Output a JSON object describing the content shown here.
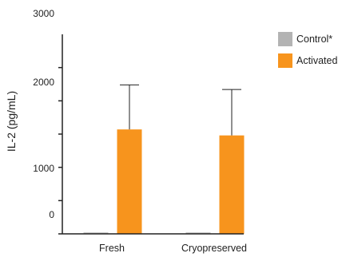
{
  "chart_data": {
    "type": "bar",
    "title": "",
    "xlabel": "",
    "ylabel": "IL-2 (pg/mL)",
    "ylim": [
      0,
      3000
    ],
    "yticks": [
      "0",
      "1000",
      "2000",
      "3000"
    ],
    "categories": [
      "Fresh",
      "Cryopreserved"
    ],
    "series": [
      {
        "name": "Control*",
        "color": "#b3b3b3",
        "values": [
          20,
          20
        ],
        "error": [
          0,
          0
        ]
      },
      {
        "name": "Activated",
        "color": "#f7941d",
        "values": [
          1570,
          1480
        ],
        "error": [
          670,
          690
        ]
      }
    ],
    "legend_position": "top-right",
    "grid": false
  }
}
